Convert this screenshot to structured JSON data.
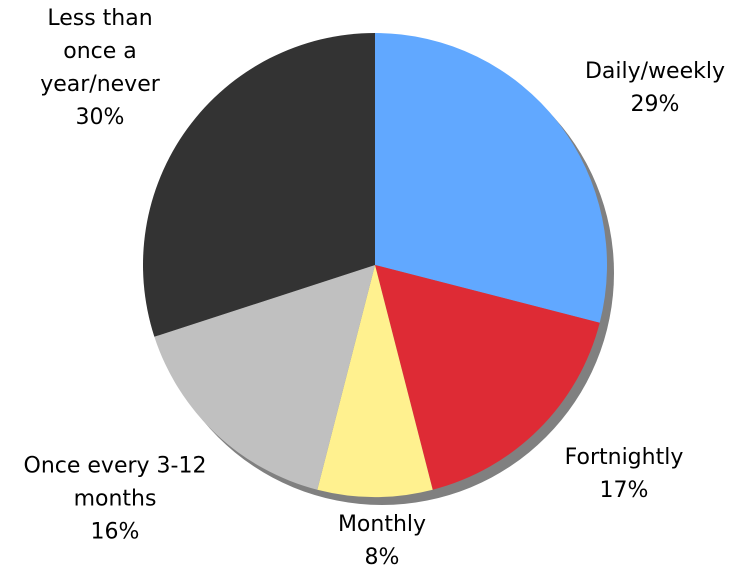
{
  "chart_data": {
    "type": "pie",
    "categories": [
      "Daily/weekly",
      "Fortnightly",
      "Monthly",
      "Once every 3-12 months",
      "Less than once a year/never"
    ],
    "values": [
      29,
      17,
      8,
      16,
      30
    ],
    "value_labels": [
      "29%",
      "17%",
      "8%",
      "16%",
      "30%"
    ],
    "colors": [
      "#61a8ff",
      "#de2b35",
      "#fff18f",
      "#c0c0c0",
      "#333333"
    ],
    "start_angle": 0,
    "direction": "clockwise"
  }
}
